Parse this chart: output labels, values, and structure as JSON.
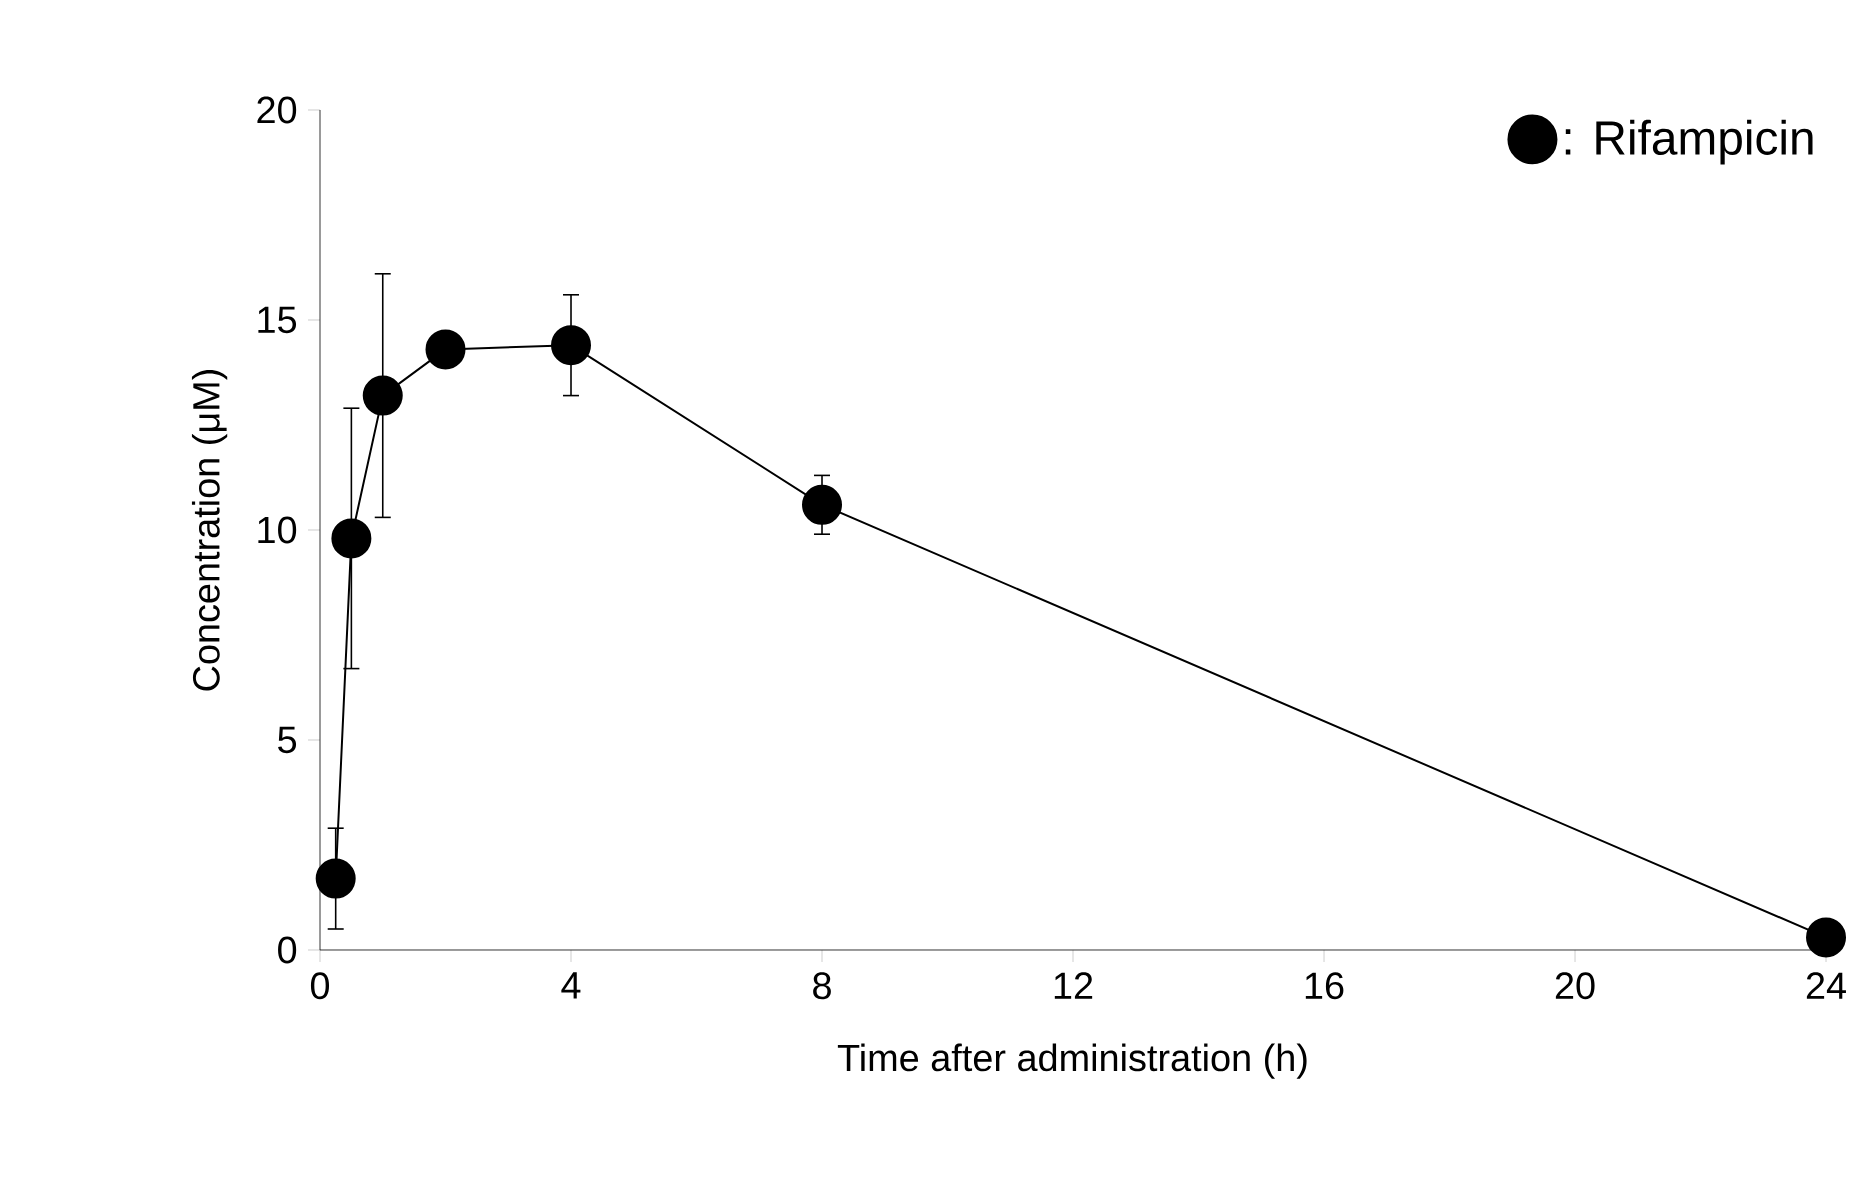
{
  "chart_data": {
    "type": "line",
    "xlabel": "Time after administration (h)",
    "ylabel": "Concentration (μM)",
    "x": [
      0.25,
      0.5,
      1,
      2,
      4,
      8,
      24
    ],
    "series": [
      {
        "name": ": Rifampicin",
        "color": "#000000",
        "values": [
          1.7,
          9.8,
          13.2,
          14.3,
          14.4,
          10.6,
          0.3
        ],
        "errors": [
          1.2,
          3.1,
          2.9,
          null,
          1.2,
          0.7,
          null
        ]
      }
    ],
    "xlim": [
      0,
      24
    ],
    "xticks": [
      0,
      4,
      8,
      12,
      16,
      20,
      24
    ],
    "ylim": [
      0,
      20
    ],
    "yticks": [
      0,
      5,
      10,
      15,
      20
    ],
    "marker": "circle",
    "line_style": "solid",
    "legend": "top right",
    "grid": false
  }
}
